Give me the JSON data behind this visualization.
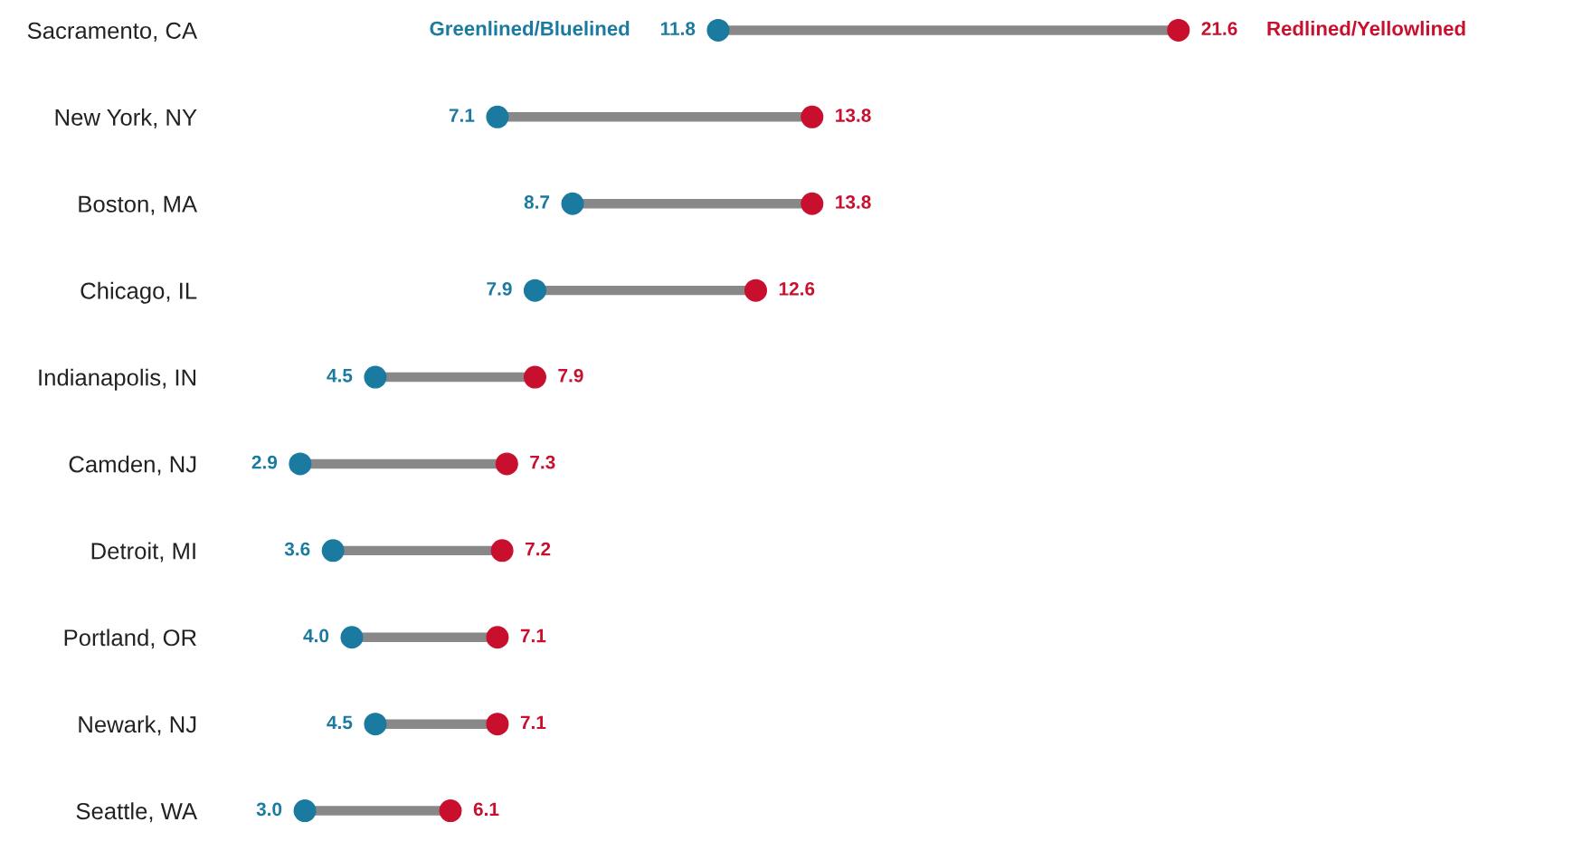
{
  "chart_data": {
    "type": "scatter",
    "orientation": "horizontal",
    "categories": [
      "Sacramento, CA",
      "New York, NY",
      "Boston, MA",
      "Chicago, IL",
      "Indianapolis, IN",
      "Camden, NJ",
      "Detroit, MI",
      "Portland, OR",
      "Newark, NJ",
      "Seattle, WA"
    ],
    "series": [
      {
        "name": "Greenlined/Bluelined",
        "color": "#1a7aa0",
        "values": [
          11.8,
          7.1,
          8.7,
          7.9,
          4.5,
          2.9,
          3.6,
          4.0,
          4.5,
          3.0
        ],
        "value_labels": [
          "11.8",
          "7.1",
          "8.7",
          "7.9",
          "4.5",
          "2.9",
          "3.6",
          "4.0",
          "4.5",
          "3.0"
        ]
      },
      {
        "name": "Redlined/Yellowlined",
        "color": "#c8102e",
        "values": [
          21.6,
          13.8,
          13.8,
          12.6,
          7.9,
          7.3,
          7.2,
          7.1,
          7.1,
          6.1
        ],
        "value_labels": [
          "21.6",
          "13.8",
          "13.8",
          "12.6",
          "7.9",
          "7.3",
          "7.2",
          "7.1",
          "7.1",
          "6.1"
        ]
      }
    ],
    "marker": "circle",
    "legend": false,
    "grid": false
  }
}
